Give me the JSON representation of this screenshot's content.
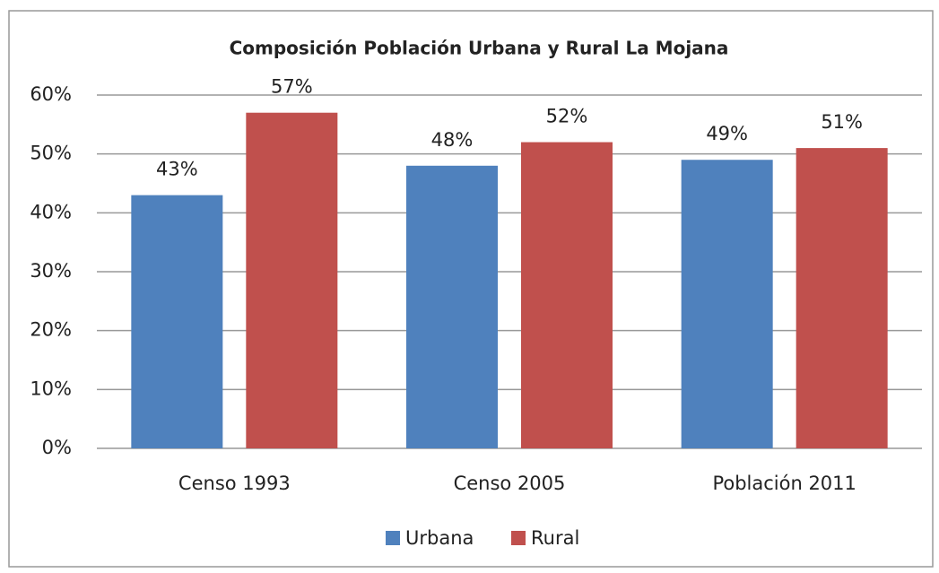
{
  "chart_data": {
    "type": "bar",
    "title": "Composición Población Urbana y Rural La Mojana",
    "categories": [
      "Censo 1993",
      "Censo 2005",
      "Población 2011"
    ],
    "series": [
      {
        "name": "Urbana",
        "color": "#4f81bd",
        "values": [
          43,
          48,
          49
        ],
        "value_labels": [
          "43%",
          "48%",
          "49%"
        ]
      },
      {
        "name": "Rural",
        "color": "#c0504d",
        "values": [
          57,
          52,
          51
        ],
        "value_labels": [
          "57%",
          "52%",
          "51%"
        ]
      }
    ],
    "ylim": [
      0,
      60
    ],
    "yticks": [
      {
        "value": 0,
        "label": "0%"
      },
      {
        "value": 10,
        "label": "10%"
      },
      {
        "value": 20,
        "label": "20%"
      },
      {
        "value": 30,
        "label": "30%"
      },
      {
        "value": 40,
        "label": "40%"
      },
      {
        "value": 50,
        "label": "50%"
      },
      {
        "value": 60,
        "label": "60%"
      }
    ],
    "grid": true,
    "legend": "bottom"
  }
}
